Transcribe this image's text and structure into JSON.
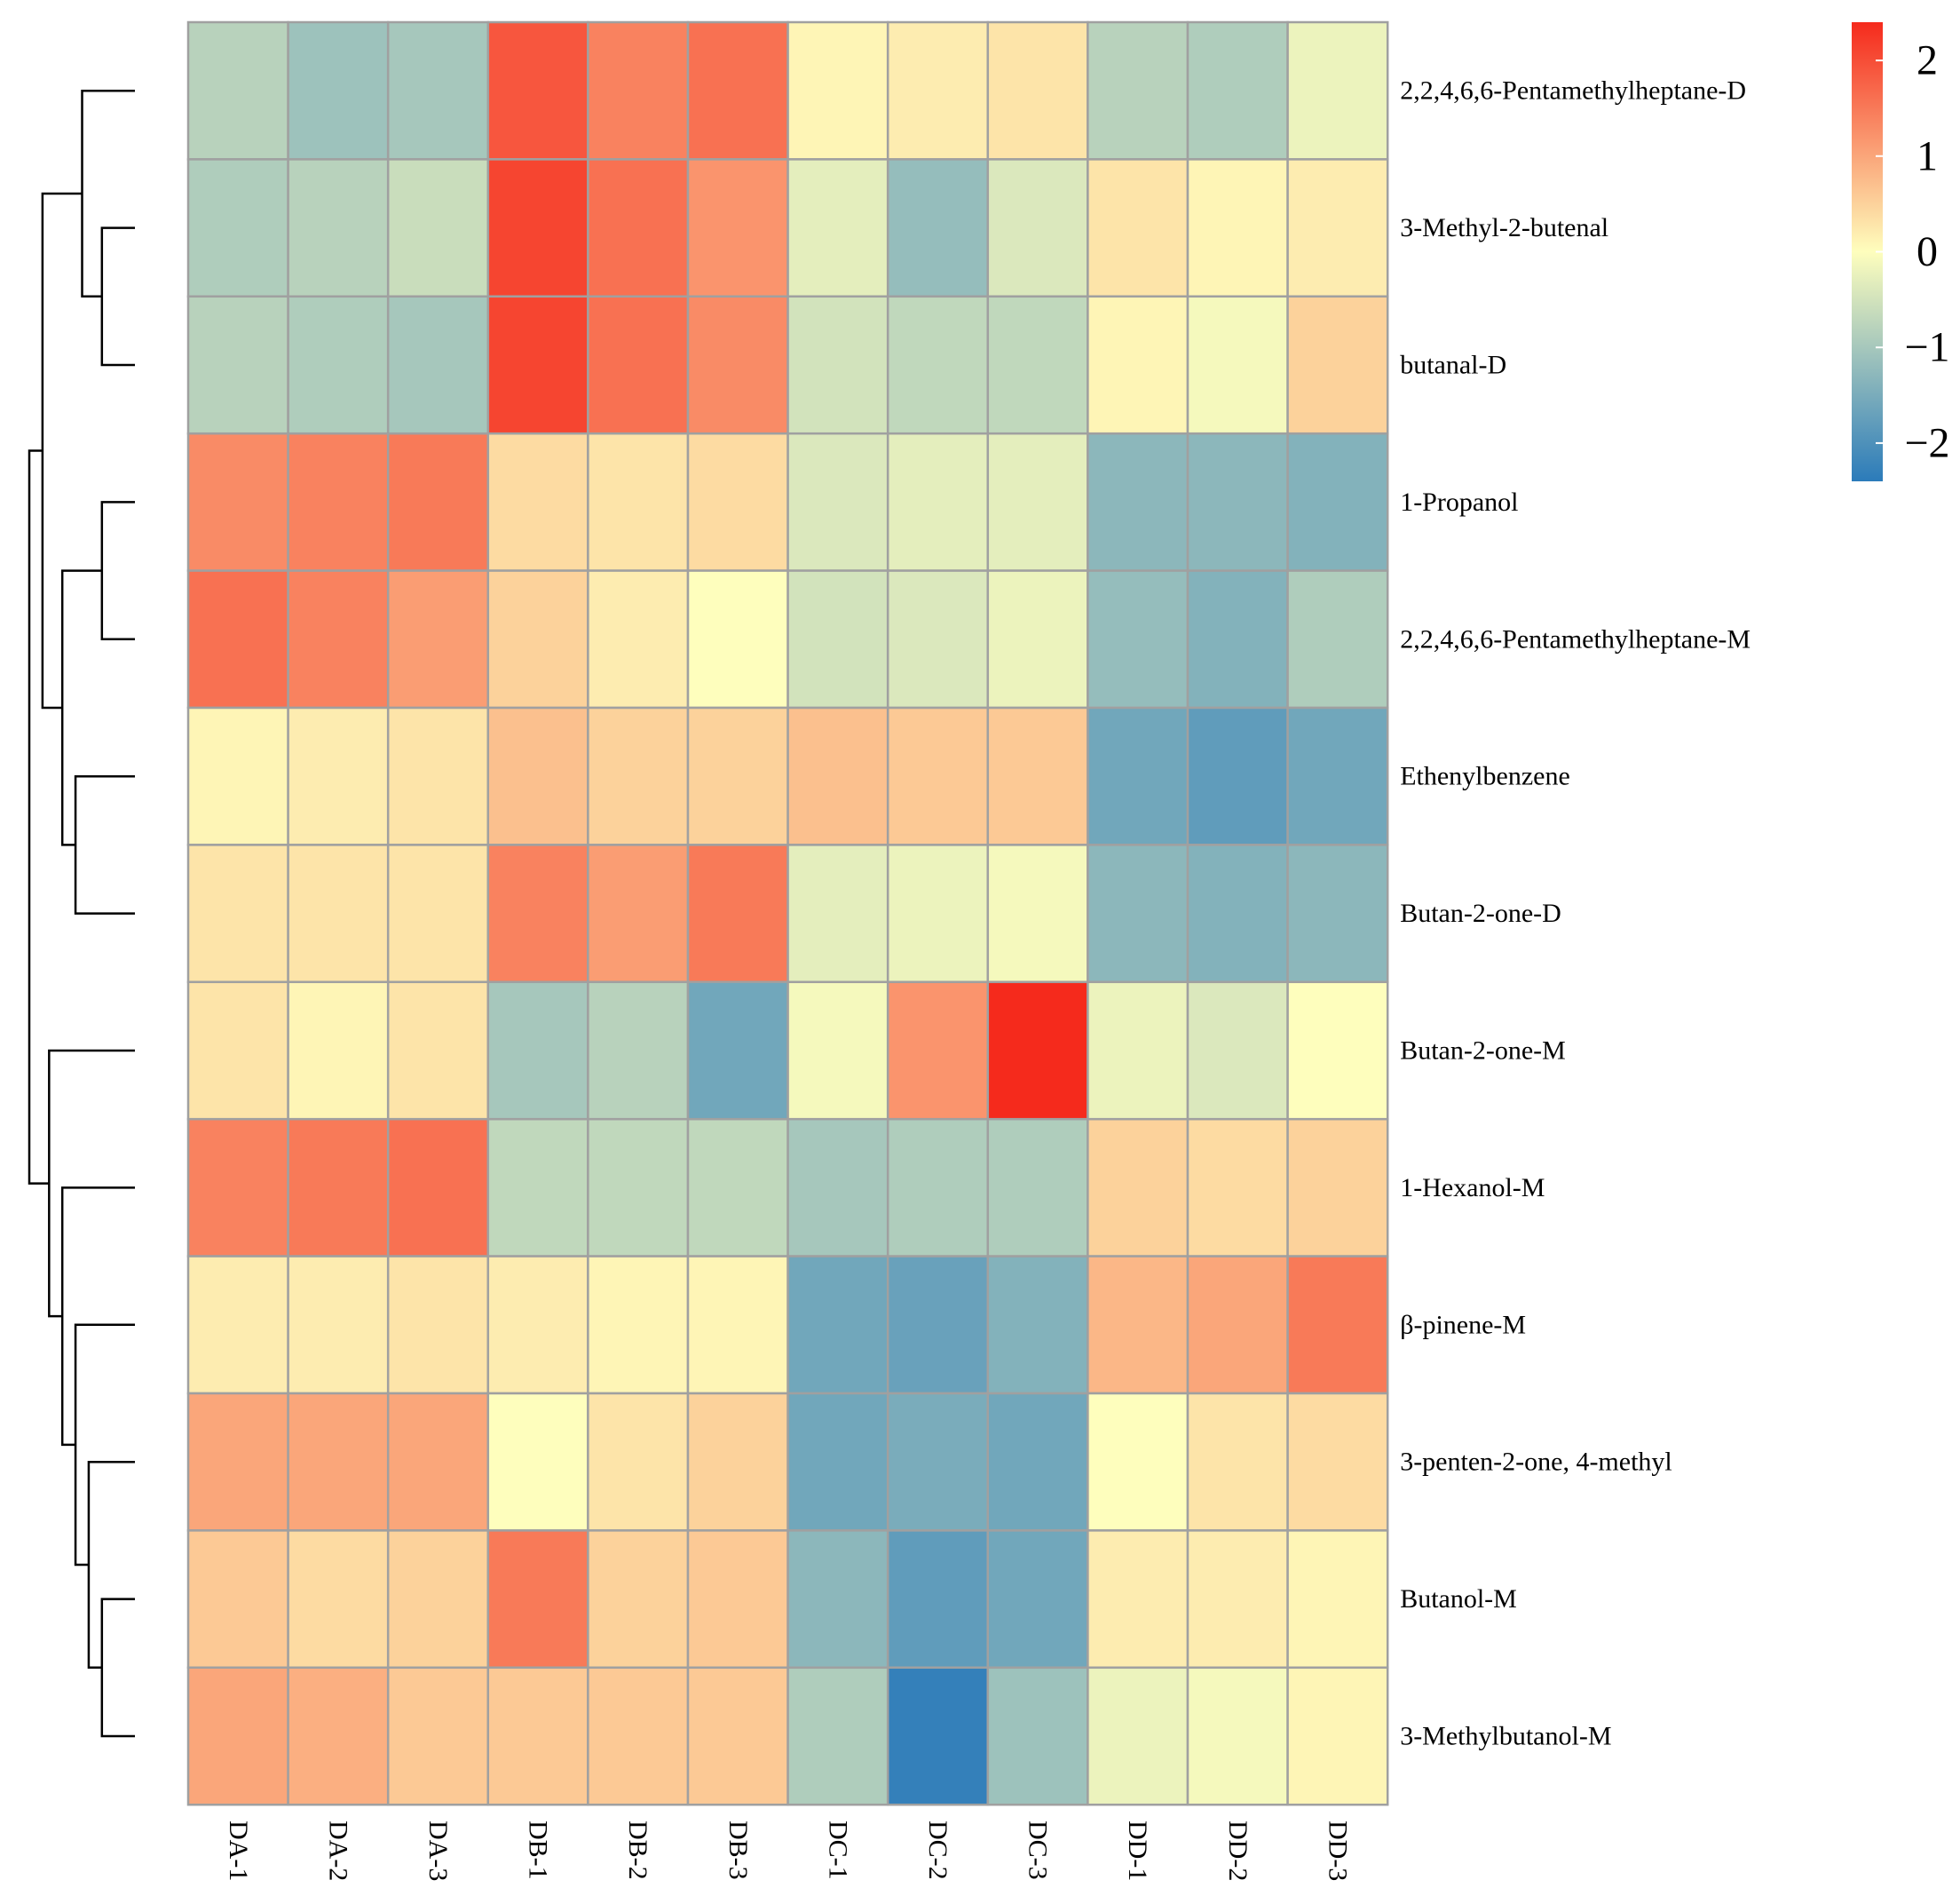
{
  "chart_data": {
    "type": "heatmap",
    "title": "",
    "columns": [
      "DA-1",
      "DA-2",
      "DA-3",
      "DB-1",
      "DB-2",
      "DB-3",
      "DC-1",
      "DC-2",
      "DC-3",
      "DD-1",
      "DD-2",
      "DD-3"
    ],
    "rows": [
      "2,2,4,6,6-Pentamethylheptane-D",
      "3-Methyl-2-butenal",
      "butanal-D",
      "1-Propanol",
      "2,2,4,6,6-Pentamethylheptane-M",
      "Ethenylbenzene",
      "Butan-2-one-D",
      "Butan-2-one-M",
      "1-Hexanol-M",
      "β-pinene-M",
      "3-penten-2-one, 4-methyl",
      "Butanol-M",
      "3-Methylbutanol-M"
    ],
    "values": [
      [
        -0.8,
        -1.1,
        -1.0,
        1.9,
        1.4,
        1.6,
        0.1,
        0.2,
        0.3,
        -0.8,
        -0.9,
        -0.2
      ],
      [
        -0.9,
        -0.8,
        -0.6,
        2.1,
        1.6,
        1.2,
        -0.3,
        -1.2,
        -0.4,
        0.3,
        0.1,
        0.2
      ],
      [
        -0.8,
        -0.9,
        -1.0,
        2.1,
        1.6,
        1.3,
        -0.5,
        -0.7,
        -0.7,
        0.1,
        -0.1,
        0.5
      ],
      [
        1.3,
        1.4,
        1.5,
        0.4,
        0.3,
        0.4,
        -0.4,
        -0.3,
        -0.3,
        -1.3,
        -1.3,
        -1.4
      ],
      [
        1.6,
        1.4,
        1.1,
        0.5,
        0.2,
        0.0,
        -0.5,
        -0.4,
        -0.2,
        -1.2,
        -1.4,
        -0.9
      ],
      [
        0.1,
        0.2,
        0.3,
        0.7,
        0.5,
        0.5,
        0.7,
        0.6,
        0.6,
        -1.6,
        -1.8,
        -1.6
      ],
      [
        0.3,
        0.3,
        0.3,
        1.4,
        1.1,
        1.5,
        -0.3,
        -0.2,
        -0.1,
        -1.3,
        -1.4,
        -1.3
      ],
      [
        0.3,
        0.1,
        0.3,
        -1.0,
        -0.8,
        -1.6,
        -0.1,
        1.2,
        2.4,
        -0.2,
        -0.4,
        0.0
      ],
      [
        1.4,
        1.5,
        1.6,
        -0.7,
        -0.7,
        -0.7,
        -1.0,
        -0.9,
        -0.9,
        0.5,
        0.4,
        0.5
      ],
      [
        0.2,
        0.2,
        0.3,
        0.2,
        0.1,
        0.1,
        -1.6,
        -1.7,
        -1.4,
        0.8,
        1.0,
        1.5
      ],
      [
        1.0,
        1.0,
        1.0,
        0.0,
        0.3,
        0.5,
        -1.6,
        -1.5,
        -1.6,
        0.0,
        0.3,
        0.4
      ],
      [
        0.6,
        0.4,
        0.5,
        1.5,
        0.5,
        0.6,
        -1.3,
        -1.8,
        -1.6,
        0.2,
        0.2,
        0.1
      ],
      [
        1.0,
        0.9,
        0.6,
        0.6,
        0.6,
        0.6,
        -0.9,
        -2.3,
        -1.1,
        -0.2,
        -0.1,
        0.1
      ]
    ],
    "color_scale": {
      "min": -2.4,
      "max": 2.4,
      "low_color": "#2b7bba",
      "mid_color": "#fefebd",
      "high_color": "#f52a1c"
    },
    "legend": {
      "placement": "top-right",
      "ticks": [
        2,
        1,
        0,
        -1,
        -2
      ],
      "tick_labels": [
        "2",
        "1",
        "0",
        "−1",
        "−2"
      ]
    },
    "row_dendrogram": {
      "placement": "left",
      "merges": [
        [
          -2,
          -3,
          0.5
        ],
        [
          -1,
          1,
          0.8
        ],
        [
          -4,
          -5,
          0.5
        ],
        [
          -6,
          -7,
          0.9
        ],
        [
          3,
          4,
          1.1
        ],
        [
          2,
          5,
          1.4
        ],
        [
          -12,
          -13,
          0.5
        ],
        [
          -11,
          7,
          0.7
        ],
        [
          -10,
          8,
          0.9
        ],
        [
          -9,
          9,
          1.1
        ],
        [
          -8,
          10,
          1.3
        ],
        [
          6,
          11,
          1.6
        ]
      ]
    },
    "grid_lines_color": "#a0a0a0"
  }
}
